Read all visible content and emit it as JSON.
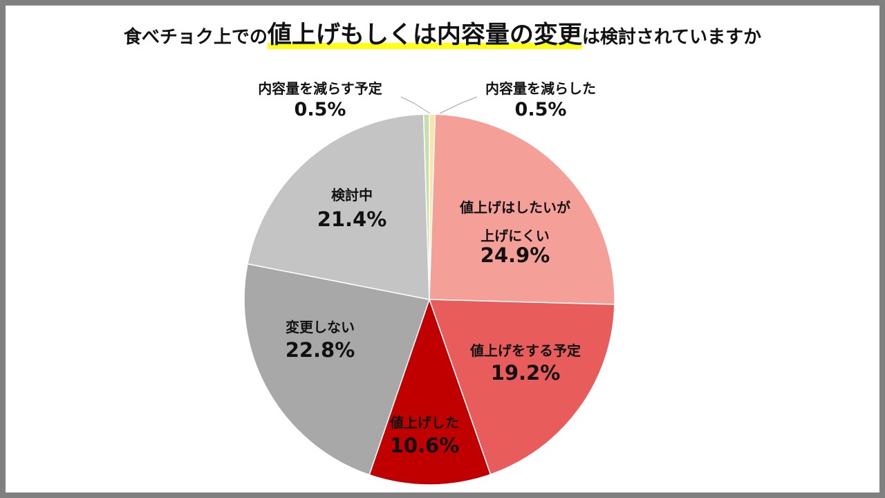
{
  "title": {
    "prefix": "食べチョク上での",
    "highlight": "値上げもしくは内容量の変更",
    "suffix": "は検討されていますか"
  },
  "chart_data": {
    "type": "pie",
    "start_angle_deg": 0,
    "direction": "clockwise",
    "slices": [
      {
        "label": "内容量を減らした",
        "value": 0.5,
        "display": "0.5%",
        "color": "#fde4a6"
      },
      {
        "label_lines": [
          "値上げはしたいが",
          "上げにくい"
        ],
        "label": "値上げはしたいが上げにくい",
        "value": 24.9,
        "display": "24.9%",
        "color": "#f4a098"
      },
      {
        "label": "値上げをする予定",
        "value": 19.2,
        "display": "19.2%",
        "color": "#e85c5c"
      },
      {
        "label": "値上げした",
        "value": 10.6,
        "display": "10.6%",
        "color": "#c00000"
      },
      {
        "label": "変更しない",
        "value": 22.8,
        "display": "22.8%",
        "color": "#a8a8a8"
      },
      {
        "label": "検討中",
        "value": 21.4,
        "display": "21.4%",
        "color": "#c4c4c4"
      },
      {
        "label": "内容量を減らす予定",
        "value": 0.5,
        "display": "0.5%",
        "color": "#c6deb0"
      }
    ]
  }
}
